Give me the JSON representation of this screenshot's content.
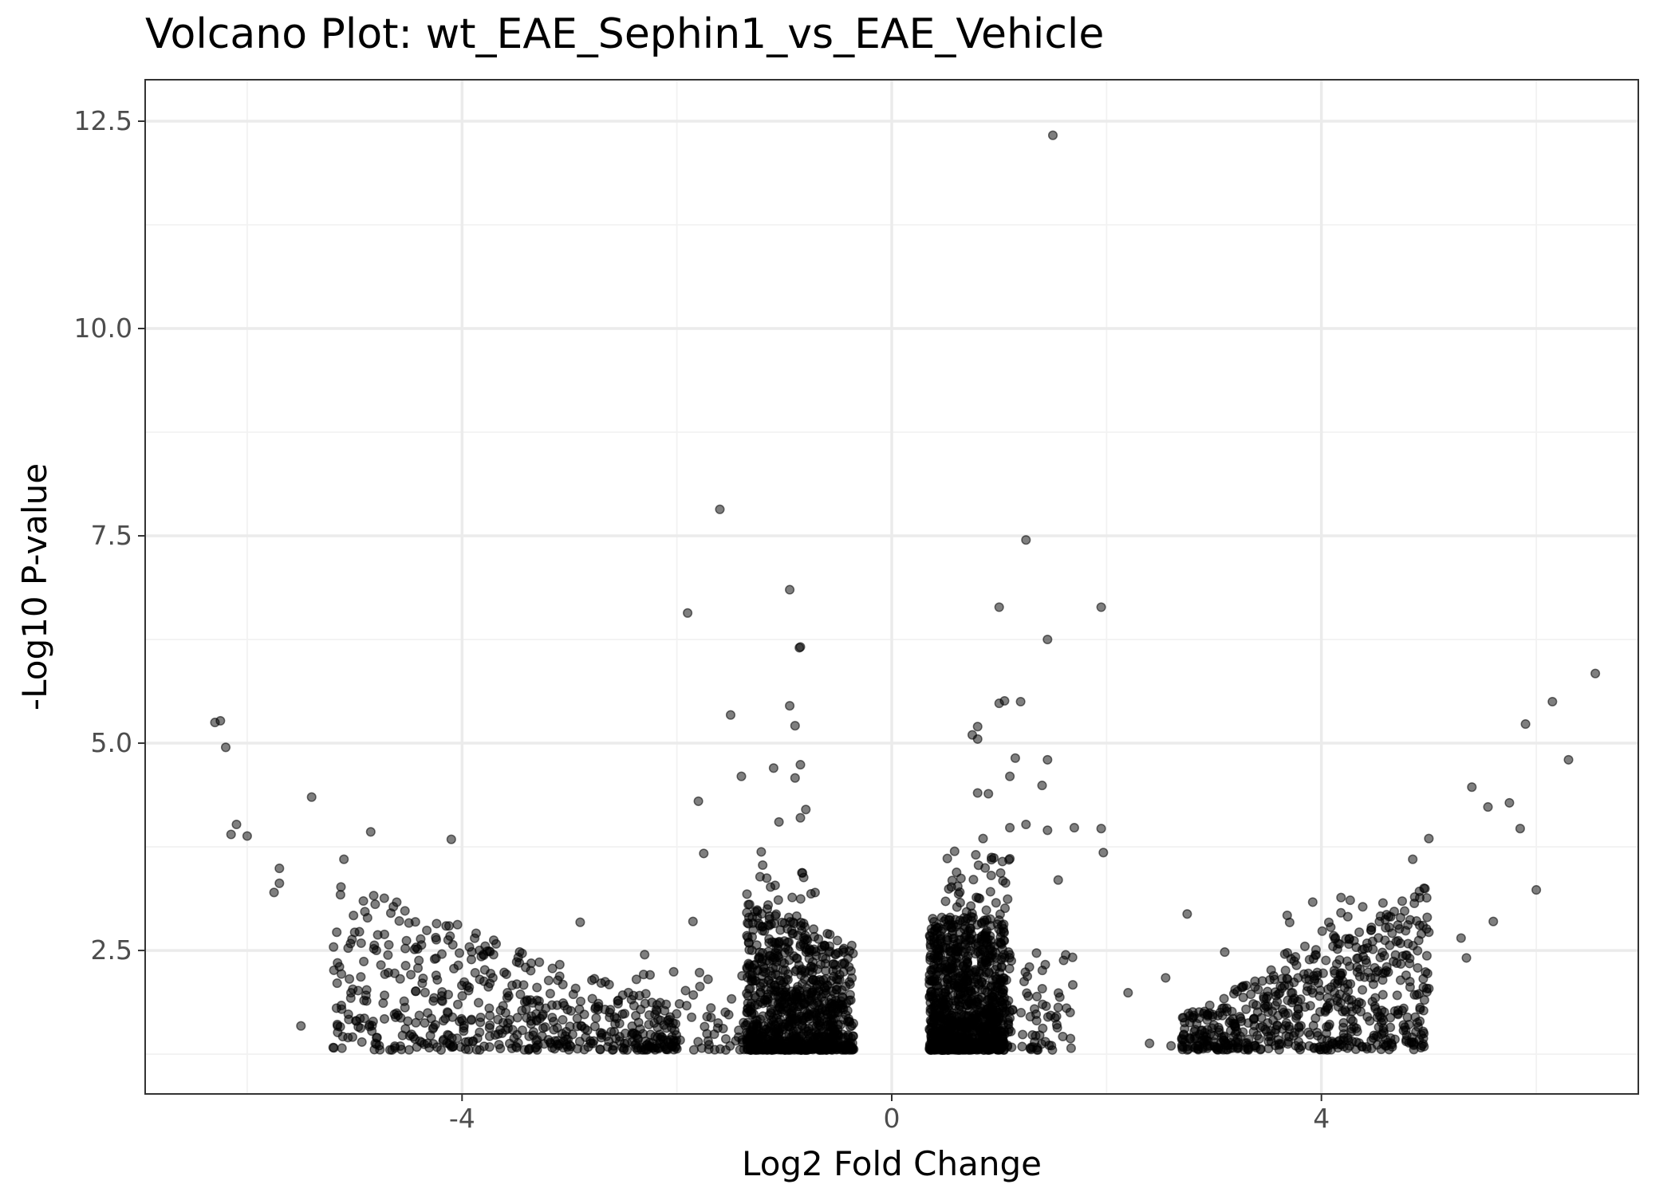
{
  "chart_data": {
    "type": "scatter",
    "title": "Volcano Plot: wt_EAE_Sephin1_vs_EAE_Vehicle",
    "xlabel": "Log2 Fold Change",
    "ylabel": "-Log10 P-value",
    "xlim": [
      -6.95,
      6.95
    ],
    "ylim": [
      0.77,
      13.0
    ],
    "x_ticks": [
      -4,
      0,
      4
    ],
    "x_tick_labels": [
      "-4",
      "0",
      "4"
    ],
    "y_ticks": [
      2.5,
      5.0,
      7.5,
      10.0,
      12.5
    ],
    "y_tick_labels": [
      "2.5",
      "5.0",
      "7.5",
      "10.0",
      "12.5"
    ],
    "grid": true,
    "legend": "none",
    "point_color": "#000000",
    "point_alpha": 0.5,
    "series": [
      {
        "points": [
          [
            1.5,
            12.33
          ],
          [
            -1.6,
            7.82
          ],
          [
            1.25,
            7.45
          ],
          [
            -0.95,
            6.85
          ],
          [
            -1.9,
            6.57
          ],
          [
            1.0,
            6.64
          ],
          [
            1.95,
            6.64
          ],
          [
            -0.85,
            6.16
          ],
          [
            -0.86,
            6.15
          ],
          [
            1.45,
            6.25
          ],
          [
            6.55,
            5.84
          ],
          [
            6.15,
            5.5
          ],
          [
            5.9,
            5.23
          ],
          [
            6.3,
            4.8
          ],
          [
            5.4,
            4.47
          ],
          [
            5.55,
            4.23
          ],
          [
            5.75,
            4.28
          ],
          [
            5.85,
            3.97
          ],
          [
            6.0,
            3.23
          ],
          [
            5.0,
            3.85
          ],
          [
            4.85,
            3.6
          ],
          [
            -6.3,
            5.25
          ],
          [
            -6.25,
            5.27
          ],
          [
            -6.2,
            4.95
          ],
          [
            -6.15,
            3.9
          ],
          [
            -6.1,
            4.02
          ],
          [
            -6.0,
            3.88
          ],
          [
            -5.7,
            3.49
          ],
          [
            -5.4,
            4.35
          ],
          [
            -5.7,
            3.31
          ],
          [
            -5.75,
            3.2
          ],
          [
            -5.1,
            3.6
          ],
          [
            -4.85,
            3.93
          ],
          [
            -4.1,
            3.84
          ],
          [
            -1.5,
            5.34
          ],
          [
            -1.8,
            4.3
          ],
          [
            -1.4,
            4.6
          ],
          [
            -1.1,
            4.7
          ],
          [
            -0.95,
            5.45
          ],
          [
            -0.9,
            5.21
          ],
          [
            -0.85,
            4.74
          ],
          [
            -0.9,
            4.58
          ],
          [
            -0.8,
            4.2
          ],
          [
            -0.85,
            4.1
          ],
          [
            -1.05,
            4.05
          ],
          [
            -1.75,
            3.67
          ],
          [
            0.75,
            5.1
          ],
          [
            0.8,
            5.05
          ],
          [
            0.8,
            5.2
          ],
          [
            1.0,
            5.48
          ],
          [
            1.05,
            5.51
          ],
          [
            1.2,
            5.5
          ],
          [
            1.15,
            4.82
          ],
          [
            1.45,
            4.8
          ],
          [
            1.1,
            4.6
          ],
          [
            1.4,
            4.49
          ],
          [
            0.8,
            4.4
          ],
          [
            0.9,
            4.39
          ],
          [
            1.1,
            3.98
          ],
          [
            1.25,
            4.02
          ],
          [
            1.45,
            3.95
          ],
          [
            1.7,
            3.98
          ],
          [
            1.95,
            3.97
          ],
          [
            1.97,
            3.68
          ],
          [
            0.85,
            3.85
          ],
          [
            1.55,
            3.35
          ],
          [
            1.6,
            2.38
          ],
          [
            2.75,
            2.94
          ],
          [
            3.1,
            2.48
          ],
          [
            2.55,
            2.17
          ],
          [
            2.2,
            1.99
          ],
          [
            -2.9,
            2.84
          ],
          [
            -2.3,
            2.45
          ],
          [
            -1.85,
            2.85
          ],
          [
            -5.5,
            1.59
          ],
          [
            -5.2,
            1.33
          ],
          [
            -4.95,
            1.68
          ],
          [
            5.0,
            2.72
          ],
          [
            5.3,
            2.65
          ],
          [
            5.35,
            2.41
          ],
          [
            5.0,
            2.04
          ],
          [
            5.6,
            2.85
          ],
          [
            4.9,
            1.58
          ],
          [
            3.0,
            1.6
          ],
          [
            2.4,
            1.38
          ],
          [
            2.6,
            1.35
          ]
        ]
      }
    ]
  }
}
